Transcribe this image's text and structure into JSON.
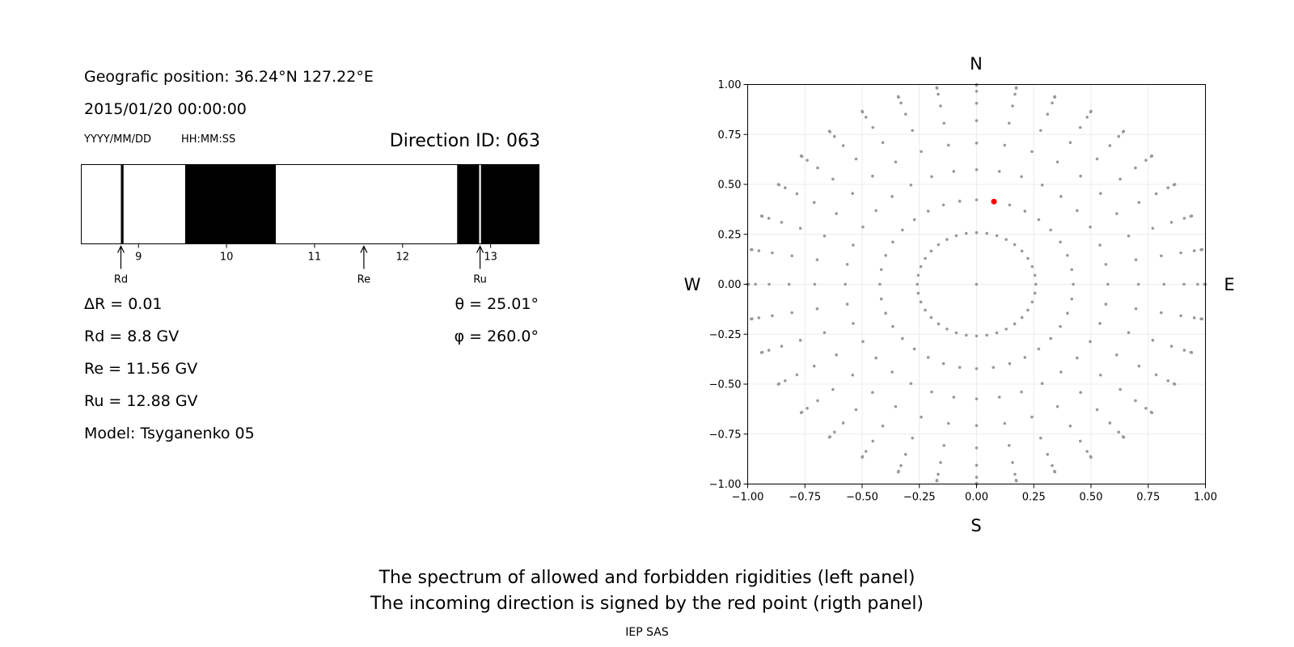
{
  "left_panel": {
    "position_line": "Geografic position: 36.24°N 127.22°E",
    "datetime": "2015/01/20 00:00:00",
    "date_format": "YYYY/MM/DD",
    "time_format": "HH:MM:SS",
    "direction_id": "Direction ID: 063",
    "delta_r": "ΔR = 0.01",
    "rd": "Rd = 8.8 GV",
    "re": "Re = 11.56 GV",
    "ru": "Ru = 12.88 GV",
    "model": "Model: Tsyganenko 05",
    "theta": "θ = 25.01°",
    "phi": "φ = 260.0°"
  },
  "footer": {
    "line1": "The spectrum of allowed and forbidden rigidities (left panel)",
    "line2": "The incoming direction is signed by the red point (rigth panel)",
    "credit": "IEP SAS"
  },
  "chart_data": [
    {
      "type": "bar",
      "name": "rigidity-spectrum",
      "xlim": [
        8.35,
        13.55
      ],
      "x_ticks": [
        9,
        10,
        11,
        12,
        13
      ],
      "forbidden_bands": [
        [
          8.8,
          8.83
        ],
        [
          9.53,
          10.56
        ],
        [
          12.62,
          12.87
        ],
        [
          12.89,
          13.55
        ]
      ],
      "markers": [
        {
          "label": "Rd",
          "value": 8.8
        },
        {
          "label": "Re",
          "value": 11.56
        },
        {
          "label": "Ru",
          "value": 12.88
        }
      ],
      "colors": {
        "forbidden": "#000000",
        "allowed": "#ffffff"
      }
    },
    {
      "type": "scatter",
      "name": "incoming-direction",
      "xlim": [
        -1.0,
        1.0
      ],
      "ylim": [
        -1.0,
        1.0
      ],
      "x_ticks": [
        "−1.00",
        "−0.75",
        "−0.50",
        "−0.25",
        "0.00",
        "0.25",
        "0.50",
        "0.75",
        "1.00"
      ],
      "y_ticks": [
        "1.00",
        "0.75",
        "0.50",
        "0.25",
        "0.00",
        "−0.25",
        "−0.50",
        "−0.75",
        "−1.00"
      ],
      "compass": {
        "north": "N",
        "south": "S",
        "west": "W",
        "east": "E"
      },
      "grid_ring_thetas_deg": [
        15,
        25,
        35,
        45,
        55,
        65,
        75,
        85,
        90
      ],
      "grid_azimuth_step_deg": 10,
      "grid": true,
      "grid_color": "#999999",
      "highlight": {
        "x": 0.076,
        "y": 0.414,
        "color": "#ff0000"
      }
    }
  ]
}
